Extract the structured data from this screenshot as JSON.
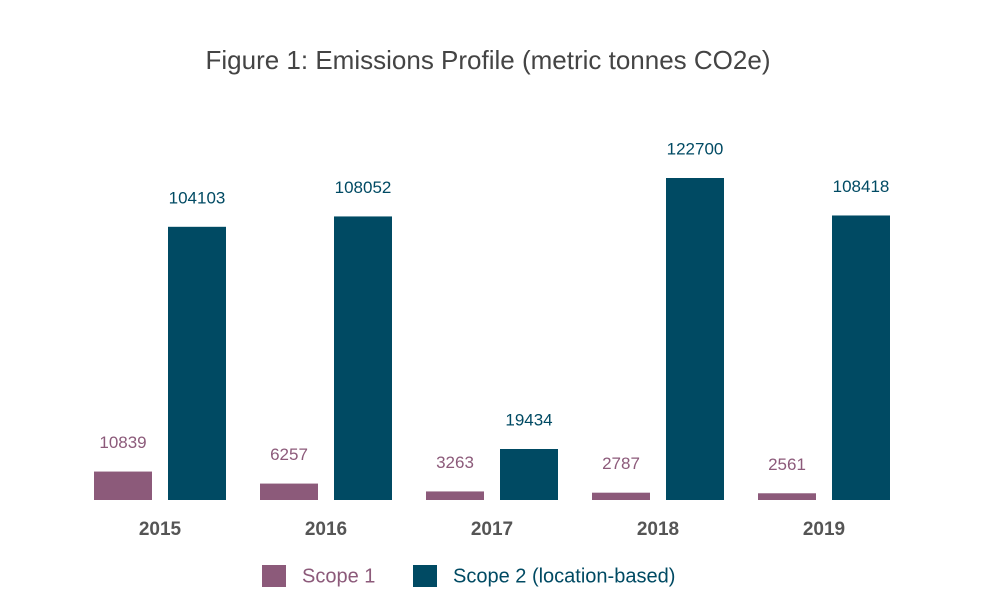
{
  "chart_data": {
    "type": "bar",
    "title": "Figure 1: Emissions Profile (metric tonnes CO2e)",
    "categories": [
      "2015",
      "2016",
      "2017",
      "2018",
      "2019"
    ],
    "series": [
      {
        "name": "Scope 1",
        "color": "#8c5a7a",
        "values": [
          10839,
          6257,
          3263,
          2787,
          2561
        ]
      },
      {
        "name": "Scope 2 (location-based)",
        "color": "#004a63",
        "values": [
          104103,
          108052,
          19434,
          122700,
          108418
        ]
      }
    ]
  }
}
